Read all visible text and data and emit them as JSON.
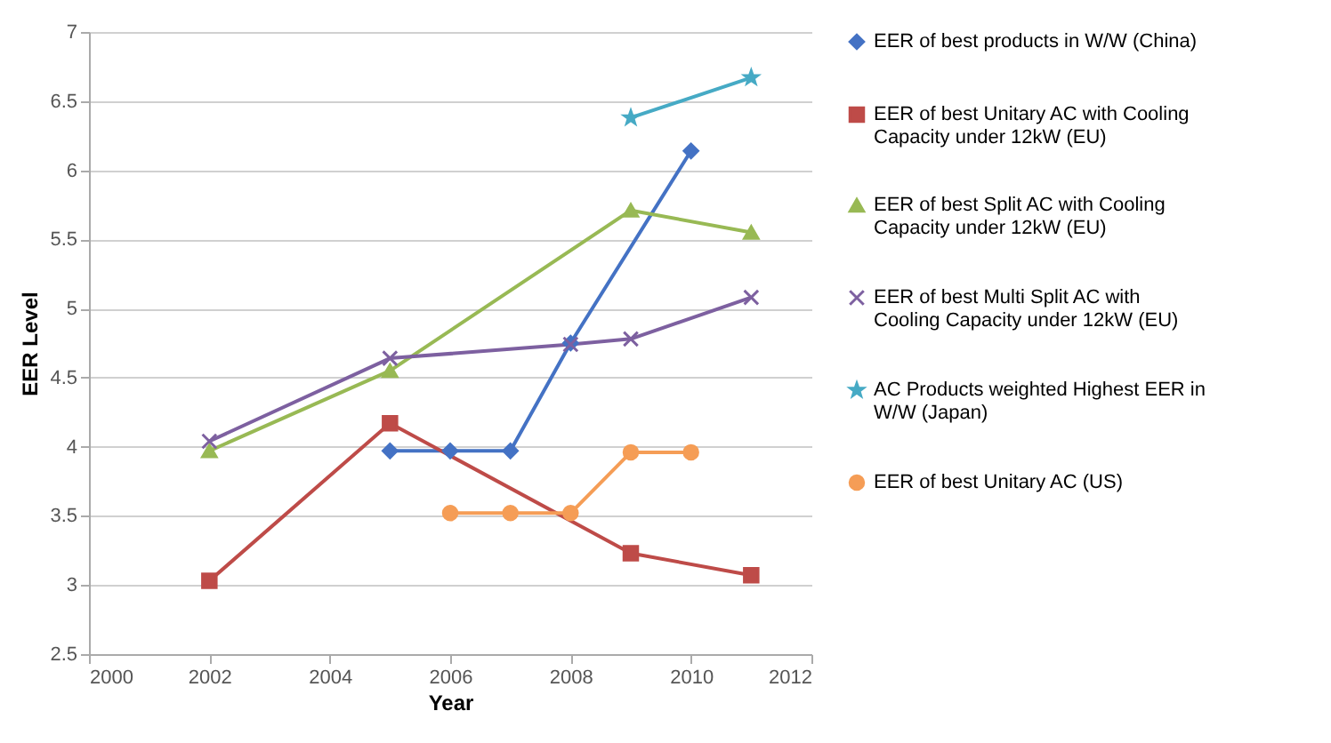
{
  "chart_data": {
    "type": "line",
    "xlabel": "Year",
    "ylabel": "EER Level",
    "xlim": [
      2000,
      2012
    ],
    "xticks": [
      2000,
      2002,
      2004,
      2006,
      2008,
      2010,
      2012
    ],
    "ylim": [
      2.5,
      7
    ],
    "yticks": [
      2.5,
      3,
      3.5,
      4,
      4.5,
      5,
      5.5,
      6,
      6.5,
      7
    ],
    "grid": "y",
    "legend": "right",
    "series": [
      {
        "name": "EER of best products in W/W (China)",
        "color": "#4472c4",
        "marker": "diamond",
        "x": [
          2005,
          2006,
          2007,
          2008,
          2010
        ],
        "values": [
          3.97,
          3.97,
          3.97,
          4.75,
          6.14
        ]
      },
      {
        "name": "EER of best Unitary AC with Cooling Capacity under 12kW (EU)",
        "color": "#be4b48",
        "marker": "square",
        "x": [
          2002,
          2005,
          2009,
          2011
        ],
        "values": [
          3.03,
          4.17,
          3.23,
          3.07
        ]
      },
      {
        "name": "EER of best Split AC with Cooling Capacity under 12kW (EU)",
        "color": "#98b954",
        "marker": "triangle",
        "x": [
          2002,
          2005,
          2009,
          2011
        ],
        "values": [
          3.97,
          4.55,
          5.71,
          5.55
        ]
      },
      {
        "name": "EER of best Multi Split AC with Cooling Capacity under 12kW (EU)",
        "color": "#7d60a0",
        "marker": "cross",
        "x": [
          2002,
          2005,
          2008,
          2009,
          2011
        ],
        "values": [
          4.04,
          4.64,
          4.74,
          4.78,
          5.08
        ]
      },
      {
        "name": "AC Products weighted Highest EER in W/W (Japan)",
        "color": "#46aac5",
        "marker": "star",
        "x": [
          2009,
          2011
        ],
        "values": [
          6.38,
          6.67
        ]
      },
      {
        "name": "EER of best Unitary AC (US)",
        "color": "#f59d56",
        "marker": "circle",
        "x": [
          2006,
          2007,
          2008,
          2009,
          2010
        ],
        "values": [
          3.52,
          3.52,
          3.52,
          3.96,
          3.96
        ]
      }
    ]
  }
}
